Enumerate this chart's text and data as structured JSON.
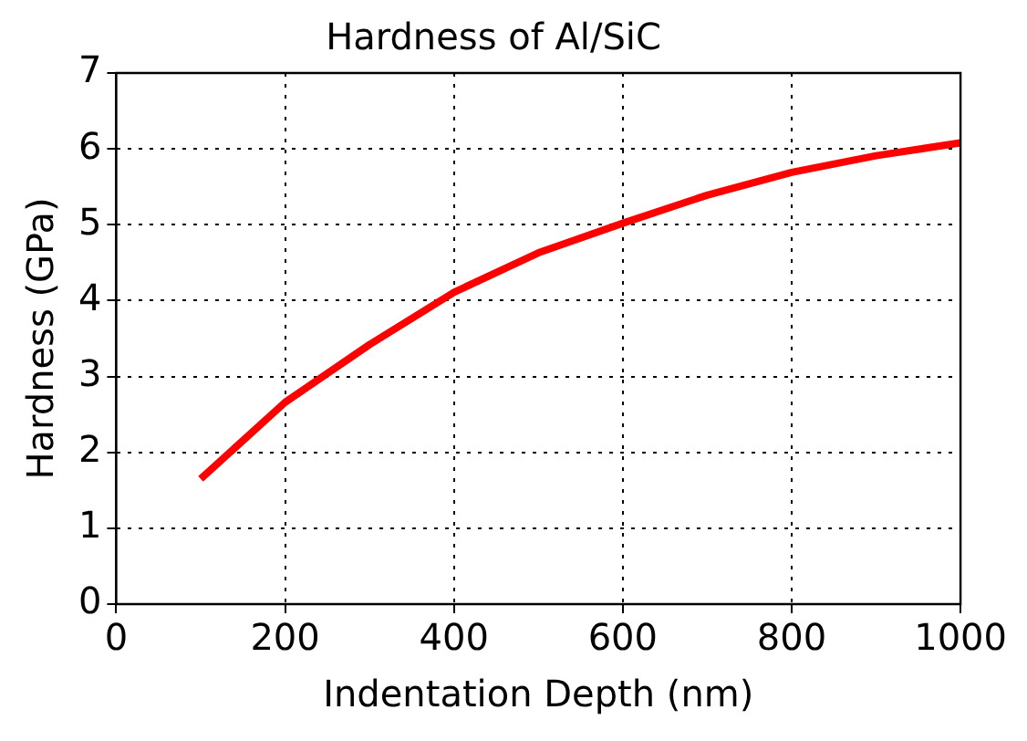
{
  "chart_data": {
    "type": "line",
    "title": "Hardness of Al/SiC",
    "xlabel": "Indentation Depth (nm)",
    "ylabel": "Hardness (GPa)",
    "x": [
      100,
      200,
      300,
      400,
      500,
      600,
      700,
      800,
      900,
      1000
    ],
    "series": [
      {
        "color": "#ff0000",
        "values": [
          1.65,
          2.66,
          3.42,
          4.11,
          4.63,
          5.02,
          5.39,
          5.69,
          5.91,
          6.08
        ]
      }
    ],
    "xlim": [
      0,
      1000
    ],
    "xticks": [
      0,
      200,
      400,
      600,
      800,
      1000
    ],
    "ylim": [
      0,
      7
    ],
    "yticks": [
      0,
      1,
      2,
      3,
      4,
      5,
      6,
      7
    ],
    "grid": true,
    "legend": false,
    "marker": "none",
    "line_style": "solid"
  }
}
